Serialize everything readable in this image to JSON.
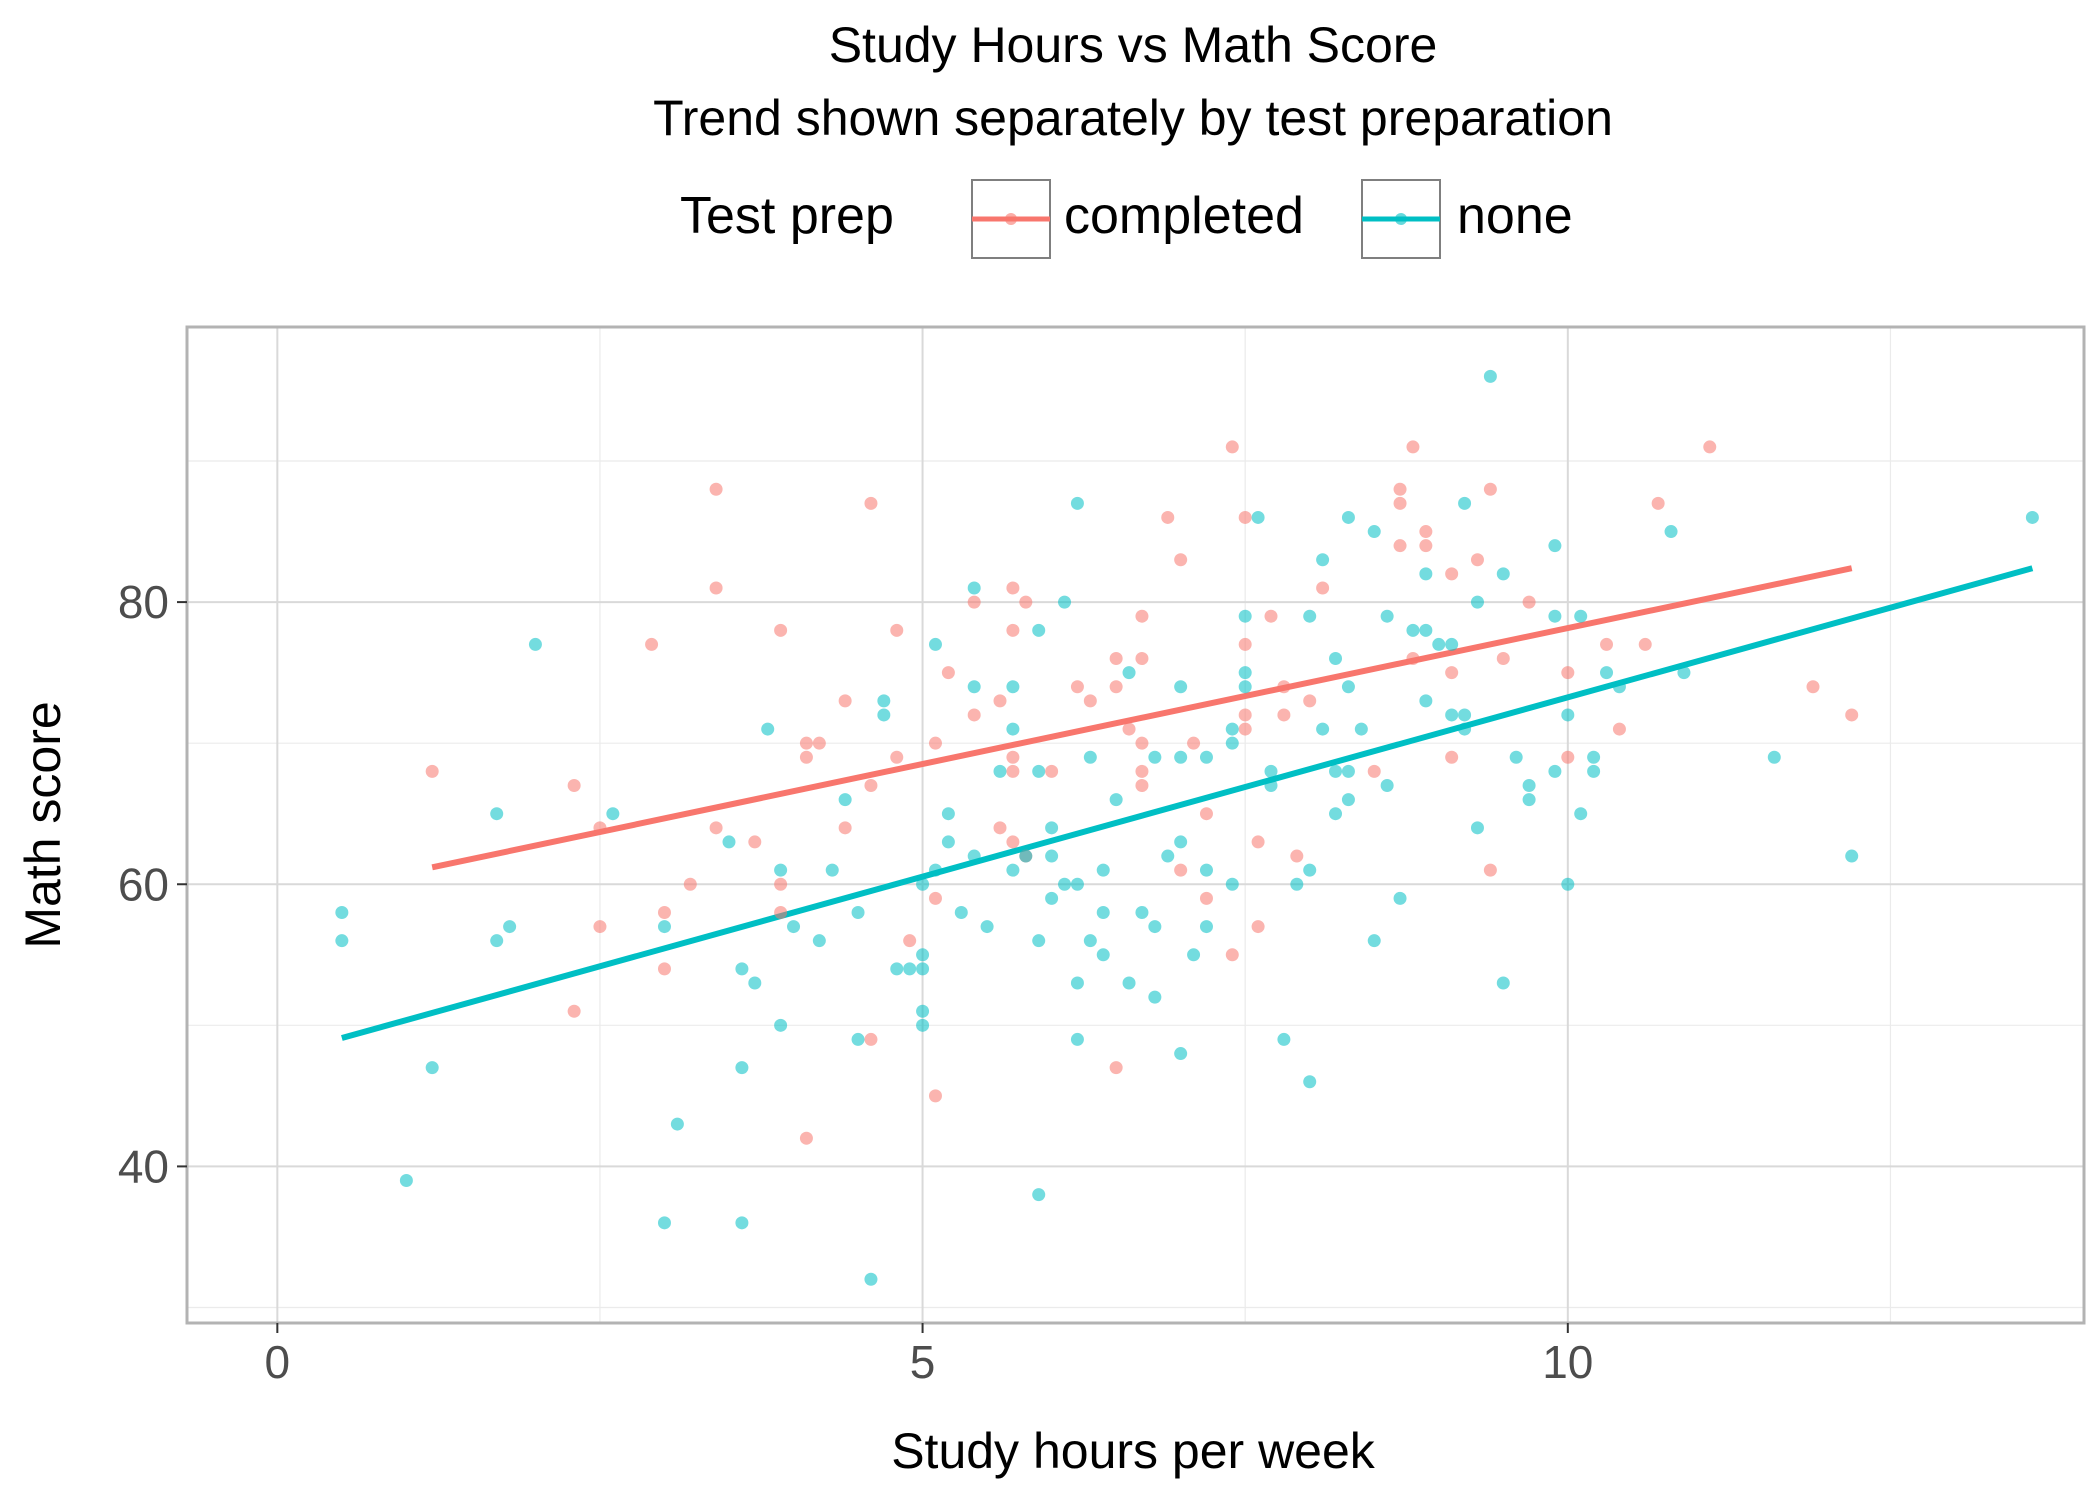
{
  "chart_data": {
    "type": "scatter",
    "title": "Study Hours vs Math Score",
    "subtitle": "Trend shown separately by test preparation",
    "xlabel": "Study hours per week",
    "ylabel": "Math score",
    "xlim": [
      -0.7,
      14.0
    ],
    "ylim": [
      28.9,
      99.5
    ],
    "x_ticks": [
      0,
      5,
      10
    ],
    "y_ticks": [
      40,
      60,
      80
    ],
    "x_tick_labels": [
      "0",
      "5",
      "10"
    ],
    "y_tick_labels": [
      "40",
      "60",
      "80"
    ],
    "grid": true,
    "legend": {
      "title": "Test prep",
      "position": "top",
      "entries": [
        "completed",
        "none"
      ]
    },
    "series": [
      {
        "name": "completed",
        "color": "#F8766D",
        "trend": {
          "x": [
            1.2,
            12.2
          ],
          "y": [
            61.2,
            82.4
          ]
        },
        "points": [
          [
            1.2,
            68
          ],
          [
            2.3,
            67
          ],
          [
            2.5,
            64
          ],
          [
            2.5,
            57
          ],
          [
            2.3,
            51
          ],
          [
            2.9,
            77
          ],
          [
            3.0,
            58
          ],
          [
            3.0,
            54
          ],
          [
            3.2,
            60
          ],
          [
            3.4,
            88
          ],
          [
            3.4,
            81
          ],
          [
            3.4,
            64
          ],
          [
            3.7,
            63
          ],
          [
            3.9,
            78
          ],
          [
            3.9,
            58
          ],
          [
            3.9,
            60
          ],
          [
            4.1,
            70
          ],
          [
            4.1,
            69
          ],
          [
            4.1,
            42
          ],
          [
            4.2,
            70
          ],
          [
            4.4,
            73
          ],
          [
            4.4,
            64
          ],
          [
            4.6,
            87
          ],
          [
            4.6,
            67
          ],
          [
            4.6,
            49
          ],
          [
            4.8,
            78
          ],
          [
            4.8,
            69
          ],
          [
            4.9,
            56
          ],
          [
            5.1,
            70
          ],
          [
            5.1,
            59
          ],
          [
            5.1,
            45
          ],
          [
            5.2,
            75
          ],
          [
            5.4,
            80
          ],
          [
            5.4,
            72
          ],
          [
            5.6,
            73
          ],
          [
            5.6,
            64
          ],
          [
            5.7,
            81
          ],
          [
            5.7,
            78
          ],
          [
            5.7,
            69
          ],
          [
            5.7,
            68
          ],
          [
            5.7,
            63
          ],
          [
            5.8,
            80
          ],
          [
            5.8,
            62
          ],
          [
            6.0,
            68
          ],
          [
            6.2,
            74
          ],
          [
            6.3,
            73
          ],
          [
            6.5,
            76
          ],
          [
            6.5,
            74
          ],
          [
            6.5,
            47
          ],
          [
            6.6,
            71
          ],
          [
            6.7,
            79
          ],
          [
            6.7,
            76
          ],
          [
            6.7,
            70
          ],
          [
            6.7,
            68
          ],
          [
            6.7,
            67
          ],
          [
            6.9,
            86
          ],
          [
            7.0,
            83
          ],
          [
            7.0,
            61
          ],
          [
            7.1,
            70
          ],
          [
            7.2,
            65
          ],
          [
            7.2,
            59
          ],
          [
            7.4,
            91
          ],
          [
            7.4,
            55
          ],
          [
            7.5,
            86
          ],
          [
            7.5,
            77
          ],
          [
            7.5,
            72
          ],
          [
            7.5,
            71
          ],
          [
            7.6,
            63
          ],
          [
            7.6,
            57
          ],
          [
            7.7,
            79
          ],
          [
            7.8,
            74
          ],
          [
            7.8,
            72
          ],
          [
            7.9,
            62
          ],
          [
            8.0,
            73
          ],
          [
            8.1,
            81
          ],
          [
            8.5,
            68
          ],
          [
            8.7,
            88
          ],
          [
            8.7,
            87
          ],
          [
            8.7,
            84
          ],
          [
            8.8,
            91
          ],
          [
            8.8,
            76
          ],
          [
            8.9,
            85
          ],
          [
            8.9,
            84
          ],
          [
            9.1,
            82
          ],
          [
            9.1,
            75
          ],
          [
            9.1,
            69
          ],
          [
            9.3,
            83
          ],
          [
            9.4,
            88
          ],
          [
            9.4,
            61
          ],
          [
            9.5,
            76
          ],
          [
            9.7,
            80
          ],
          [
            10.0,
            75
          ],
          [
            10.0,
            69
          ],
          [
            10.3,
            77
          ],
          [
            10.4,
            71
          ],
          [
            10.6,
            77
          ],
          [
            10.7,
            87
          ],
          [
            11.1,
            91
          ],
          [
            11.9,
            74
          ],
          [
            12.2,
            72
          ]
        ]
      },
      {
        "name": "none",
        "color": "#00BFC4",
        "trend": {
          "x": [
            0.5,
            13.6
          ],
          "y": [
            49.1,
            82.4
          ]
        },
        "points": [
          [
            0.5,
            58
          ],
          [
            0.5,
            56
          ],
          [
            1.0,
            39
          ],
          [
            1.2,
            47
          ],
          [
            1.7,
            65
          ],
          [
            1.7,
            56
          ],
          [
            1.8,
            57
          ],
          [
            2.0,
            77
          ],
          [
            2.6,
            65
          ],
          [
            3.0,
            57
          ],
          [
            3.0,
            36
          ],
          [
            3.1,
            43
          ],
          [
            3.5,
            63
          ],
          [
            3.6,
            54
          ],
          [
            3.6,
            47
          ],
          [
            3.6,
            36
          ],
          [
            3.7,
            53
          ],
          [
            3.8,
            71
          ],
          [
            3.9,
            61
          ],
          [
            3.9,
            50
          ],
          [
            4.0,
            57
          ],
          [
            4.2,
            56
          ],
          [
            4.3,
            61
          ],
          [
            4.4,
            66
          ],
          [
            4.5,
            58
          ],
          [
            4.5,
            49
          ],
          [
            4.6,
            32
          ],
          [
            4.7,
            73
          ],
          [
            4.7,
            72
          ],
          [
            4.8,
            54
          ],
          [
            4.9,
            54
          ],
          [
            5.0,
            60
          ],
          [
            5.0,
            55
          ],
          [
            5.0,
            54
          ],
          [
            5.0,
            51
          ],
          [
            5.0,
            50
          ],
          [
            5.1,
            77
          ],
          [
            5.1,
            61
          ],
          [
            5.2,
            65
          ],
          [
            5.2,
            63
          ],
          [
            5.3,
            58
          ],
          [
            5.4,
            81
          ],
          [
            5.4,
            74
          ],
          [
            5.4,
            62
          ],
          [
            5.5,
            57
          ],
          [
            5.6,
            68
          ],
          [
            5.7,
            74
          ],
          [
            5.7,
            71
          ],
          [
            5.7,
            61
          ],
          [
            5.8,
            62
          ],
          [
            5.9,
            78
          ],
          [
            5.9,
            68
          ],
          [
            5.9,
            56
          ],
          [
            5.9,
            38
          ],
          [
            6.0,
            64
          ],
          [
            6.0,
            62
          ],
          [
            6.0,
            59
          ],
          [
            6.1,
            80
          ],
          [
            6.1,
            60
          ],
          [
            6.2,
            87
          ],
          [
            6.2,
            60
          ],
          [
            6.2,
            53
          ],
          [
            6.2,
            49
          ],
          [
            6.3,
            69
          ],
          [
            6.3,
            56
          ],
          [
            6.4,
            61
          ],
          [
            6.4,
            58
          ],
          [
            6.4,
            55
          ],
          [
            6.5,
            66
          ],
          [
            6.6,
            75
          ],
          [
            6.6,
            53
          ],
          [
            6.7,
            58
          ],
          [
            6.8,
            69
          ],
          [
            6.8,
            57
          ],
          [
            6.8,
            52
          ],
          [
            6.9,
            62
          ],
          [
            7.0,
            74
          ],
          [
            7.0,
            69
          ],
          [
            7.0,
            63
          ],
          [
            7.0,
            48
          ],
          [
            7.1,
            55
          ],
          [
            7.2,
            69
          ],
          [
            7.2,
            61
          ],
          [
            7.2,
            57
          ],
          [
            7.4,
            71
          ],
          [
            7.4,
            70
          ],
          [
            7.4,
            60
          ],
          [
            7.5,
            79
          ],
          [
            7.5,
            75
          ],
          [
            7.5,
            74
          ],
          [
            7.6,
            86
          ],
          [
            7.7,
            68
          ],
          [
            7.7,
            67
          ],
          [
            7.8,
            49
          ],
          [
            7.9,
            60
          ],
          [
            8.0,
            79
          ],
          [
            8.0,
            61
          ],
          [
            8.0,
            46
          ],
          [
            8.1,
            83
          ],
          [
            8.1,
            71
          ],
          [
            8.2,
            76
          ],
          [
            8.2,
            68
          ],
          [
            8.2,
            65
          ],
          [
            8.3,
            86
          ],
          [
            8.3,
            74
          ],
          [
            8.3,
            68
          ],
          [
            8.3,
            66
          ],
          [
            8.4,
            71
          ],
          [
            8.5,
            85
          ],
          [
            8.5,
            56
          ],
          [
            8.6,
            79
          ],
          [
            8.6,
            67
          ],
          [
            8.7,
            59
          ],
          [
            8.8,
            78
          ],
          [
            8.9,
            82
          ],
          [
            8.9,
            78
          ],
          [
            8.9,
            73
          ],
          [
            9.0,
            77
          ],
          [
            9.1,
            77
          ],
          [
            9.1,
            72
          ],
          [
            9.2,
            87
          ],
          [
            9.2,
            72
          ],
          [
            9.2,
            71
          ],
          [
            9.3,
            80
          ],
          [
            9.3,
            64
          ],
          [
            9.4,
            96
          ],
          [
            9.5,
            82
          ],
          [
            9.5,
            53
          ],
          [
            9.6,
            69
          ],
          [
            9.7,
            67
          ],
          [
            9.7,
            66
          ],
          [
            9.9,
            84
          ],
          [
            9.9,
            79
          ],
          [
            9.9,
            68
          ],
          [
            10.0,
            72
          ],
          [
            10.0,
            60
          ],
          [
            10.1,
            79
          ],
          [
            10.1,
            65
          ],
          [
            10.2,
            69
          ],
          [
            10.2,
            68
          ],
          [
            10.3,
            75
          ],
          [
            10.4,
            74
          ],
          [
            10.8,
            85
          ],
          [
            10.9,
            75
          ],
          [
            11.6,
            69
          ],
          [
            12.2,
            62
          ],
          [
            13.6,
            86
          ]
        ]
      }
    ]
  }
}
